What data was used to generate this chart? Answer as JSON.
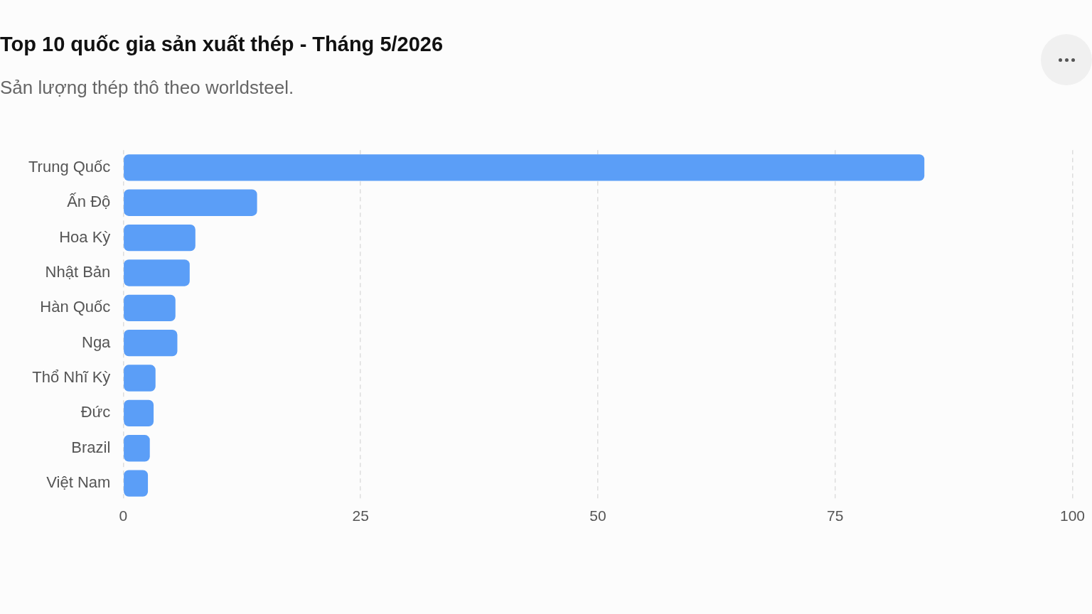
{
  "chart_data": {
    "type": "bar",
    "orientation": "horizontal",
    "title": "Top 10 quốc gia sản xuất thép - Tháng 5/2026",
    "subtitle": "Sản lượng thép thô theo worldsteel.",
    "categories": [
      "Trung Quốc",
      "Ấn Độ",
      "Hoa Kỳ",
      "Nhật Bản",
      "Hàn Quốc",
      "Nga",
      "Thổ Nhĩ Kỳ",
      "Đức",
      "Brazil",
      "Việt Nam"
    ],
    "values": [
      84.4,
      14.1,
      7.6,
      7.0,
      5.5,
      5.7,
      3.4,
      3.2,
      2.8,
      2.6
    ],
    "color": "#5b9ef7",
    "xlim": [
      0,
      100
    ],
    "xticks": [
      0,
      25,
      50,
      75,
      100
    ],
    "grid": "x",
    "legend": false
  }
}
